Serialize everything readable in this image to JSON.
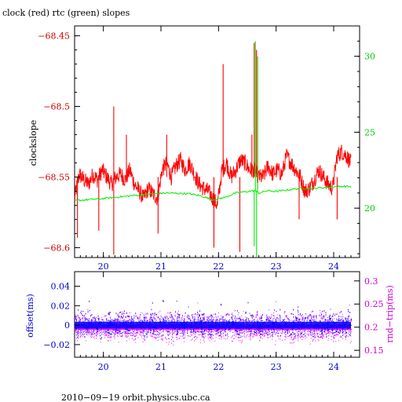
{
  "chart_data": [
    {
      "type": "line",
      "title": "clock (red) rtc (green) slopes",
      "ylabel": "clockslope",
      "ylabel_right": "",
      "xlim": [
        19.5,
        24.45
      ],
      "x_ticks": [
        20,
        21,
        22,
        23,
        24
      ],
      "ylim": [
        -68.607,
        -68.443
      ],
      "y_ticks": [
        -68.45,
        -68.5,
        -68.55,
        -68.6
      ],
      "y_tick_labels": [
        "−68.45",
        "−68.5",
        "−68.55",
        "−68.6"
      ],
      "ylim_right": [
        16.75,
        32.0
      ],
      "y_ticks_right": [
        20,
        25,
        30
      ],
      "y_tick_labels_right": [
        "20",
        "25",
        "30"
      ],
      "grid": false,
      "series": [
        {
          "name": "clock",
          "color": "#ff0000",
          "axis": "left",
          "x": [
            19.5,
            19.58,
            19.66,
            19.74,
            19.82,
            19.9,
            19.98,
            20.06,
            20.14,
            20.22,
            20.3,
            20.38,
            20.46,
            20.54,
            20.62,
            20.7,
            20.78,
            20.86,
            20.94,
            21.02,
            21.1,
            21.18,
            21.26,
            21.34,
            21.42,
            21.5,
            21.58,
            21.66,
            21.74,
            21.82,
            21.9,
            21.98,
            22.06,
            22.14,
            22.22,
            22.3,
            22.38,
            22.46,
            22.54,
            22.62,
            22.7,
            22.78,
            22.86,
            22.94,
            23.02,
            23.1,
            23.18,
            23.26,
            23.34,
            23.42,
            23.5,
            23.58,
            23.66,
            23.74,
            23.82,
            23.9,
            23.98,
            24.06,
            24.14,
            24.22,
            24.3
          ],
          "y": [
            -68.565,
            -68.548,
            -68.552,
            -68.555,
            -68.548,
            -68.552,
            -68.545,
            -68.55,
            -68.555,
            -68.55,
            -68.548,
            -68.552,
            -68.545,
            -68.555,
            -68.56,
            -68.565,
            -68.558,
            -68.562,
            -68.565,
            -68.545,
            -68.54,
            -68.55,
            -68.542,
            -68.538,
            -68.545,
            -68.54,
            -68.548,
            -68.555,
            -68.558,
            -68.56,
            -68.565,
            -68.57,
            -68.545,
            -68.54,
            -68.55,
            -68.545,
            -68.538,
            -68.54,
            -68.545,
            -68.545,
            -68.55,
            -68.55,
            -68.542,
            -68.548,
            -68.545,
            -68.548,
            -68.535,
            -68.54,
            -68.545,
            -68.55,
            -68.56,
            -68.558,
            -68.552,
            -68.545,
            -68.55,
            -68.555,
            -68.558,
            -68.535,
            -68.532,
            -68.535,
            -68.54
          ],
          "spikes": [
            {
              "x": 19.55,
              "low": -68.593
            },
            {
              "x": 19.92,
              "low": -68.588
            },
            {
              "x": 20.18,
              "high": -68.5
            },
            {
              "x": 20.18,
              "low": -68.605
            },
            {
              "x": 20.4,
              "high": -68.52
            },
            {
              "x": 20.95,
              "low": -68.59
            },
            {
              "x": 21.1,
              "high": -68.52
            },
            {
              "x": 21.92,
              "low": -68.6
            },
            {
              "x": 22.08,
              "high": -68.47
            },
            {
              "x": 22.37,
              "low": -68.603
            },
            {
              "x": 22.58,
              "high": -68.52
            },
            {
              "x": 22.62,
              "high": -68.455
            },
            {
              "x": 22.66,
              "high": -68.46
            },
            {
              "x": 23.4,
              "low": -68.58
            },
            {
              "x": 24.06,
              "low": -68.58
            }
          ]
        },
        {
          "name": "rtc",
          "color": "#00ee00",
          "axis": "right",
          "x": [
            19.5,
            19.9,
            20.3,
            20.7,
            21.1,
            21.5,
            21.7,
            21.9,
            22.1,
            22.3,
            22.5,
            22.62,
            22.7,
            22.85,
            23.0,
            23.2,
            23.4,
            23.6,
            23.8,
            24.0,
            24.2,
            24.3
          ],
          "y": [
            20.5,
            20.6,
            20.75,
            20.9,
            21.0,
            20.95,
            20.8,
            20.55,
            20.7,
            21.0,
            21.1,
            21.15,
            21.0,
            21.15,
            21.1,
            21.2,
            21.3,
            21.3,
            21.35,
            21.4,
            21.45,
            21.4
          ],
          "spikes": [
            {
              "x": 22.62,
              "low": 17.5
            },
            {
              "x": 22.64,
              "high": 31.0
            },
            {
              "x": 22.66,
              "low": 16.8
            },
            {
              "x": 22.68,
              "high": 30.0
            }
          ]
        }
      ]
    },
    {
      "type": "scatter",
      "ylabel": "offset(ms)",
      "ylabel_right": "rnd−trip(ms)",
      "xlim": [
        19.5,
        24.45
      ],
      "x_ticks": [
        20,
        21,
        22,
        23,
        24
      ],
      "ylim": [
        -0.033,
        0.055
      ],
      "y_ticks": [
        0.04,
        0.02,
        0,
        -0.02
      ],
      "y_tick_labels": [
        "0.04",
        "0.02",
        "0",
        "−0.02"
      ],
      "ylim_right": [
        0.135,
        0.32
      ],
      "y_ticks_right": [
        0.3,
        0.25,
        0.2,
        0.15
      ],
      "y_tick_labels_right": [
        "0.3",
        "0.25",
        "0.2",
        "0.15"
      ],
      "series": [
        {
          "name": "offset",
          "color": "#0000ff",
          "axis": "left",
          "center": 0.0,
          "spread": 0.006
        },
        {
          "name": "rnd-trip",
          "color": "#ff00ff",
          "axis": "right",
          "center": 0.2,
          "spread": 0.014
        }
      ]
    }
  ],
  "footer": "2010−09−19  orbit.physics.ubc.ca",
  "colors": {
    "left_axis_top": "#cc0000",
    "right_axis_top": "#00cc00",
    "left_axis_bottom": "#0000cc",
    "right_axis_bottom": "#cc00cc",
    "x_axis": "#0000cc"
  }
}
